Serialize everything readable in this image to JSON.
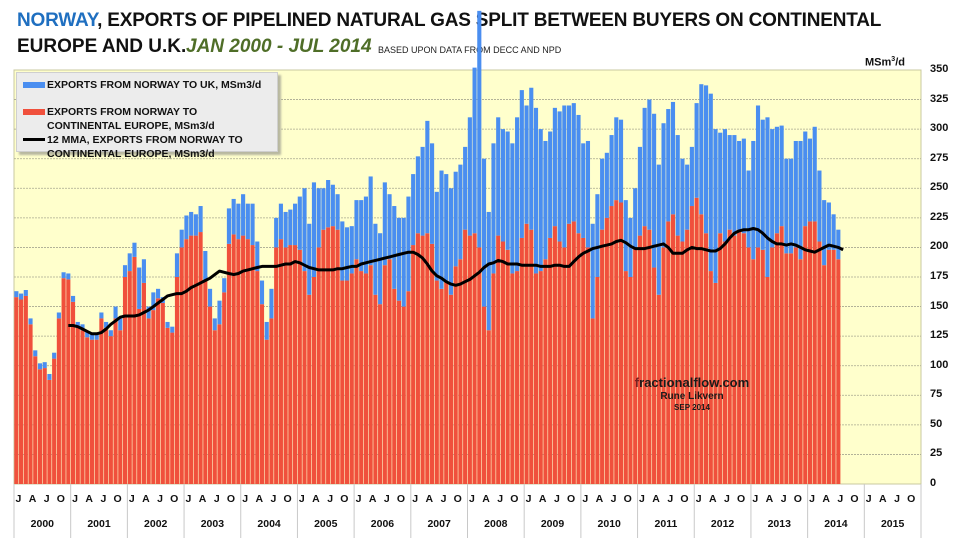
{
  "title": {
    "highlight": "NORWAY",
    "line1_rest": ", EXPORTS OF PIPELINED NATURAL GAS SPLIT BETWEEN BUYERS ON CONTINENTAL",
    "line2": "EUROPE AND U.K.",
    "period": "JAN 2000 - JUL 2014",
    "source": "BASED UPON DATA FROM DECC AND NPD"
  },
  "colors": {
    "uk": "#4a8ef0",
    "continental": "#f0503c",
    "mma": "#000000",
    "plot_bg": "#ffffcc",
    "title_highlight": "#1f6fc0",
    "period": "#4f6e28"
  },
  "watermark": {
    "site_first": "f",
    "site_rest": "ractionalflow.com",
    "author": "Rune Likvern",
    "date": "SEP 2014"
  },
  "chart_data": {
    "type": "bar",
    "stacked": true,
    "title": "NORWAY, EXPORTS OF PIPELINED NATURAL GAS SPLIT BETWEEN BUYERS ON CONTINENTAL EUROPE AND U.K. JAN 2000 - JUL 2014",
    "ylabel": "MSm³/d",
    "y_axis_position": "right",
    "ylim": [
      0,
      350
    ],
    "yticks": [
      0,
      25,
      50,
      75,
      100,
      125,
      150,
      175,
      200,
      225,
      250,
      275,
      300,
      325,
      350
    ],
    "grid": true,
    "legend_position": "top-left",
    "x_start": "2000-01",
    "x_end_axis": "2015-12",
    "month_tick_labels": [
      "J",
      "A",
      "J",
      "O"
    ],
    "year_labels": [
      "2000",
      "2001",
      "2002",
      "2003",
      "2004",
      "2005",
      "2006",
      "2007",
      "2008",
      "2009",
      "2010",
      "2011",
      "2012",
      "2013",
      "2014",
      "2015"
    ],
    "legend": [
      "EXPORTS FROM NORWAY TO UK,  MSm3/d",
      "EXPORTS FROM NORWAY TO CONTINENTAL EUROPE,  MSm3/d",
      "12 MMA, EXPORTS FROM NORWAY TO CONTINENTAL EUROPE, MSm3/d"
    ],
    "series": [
      {
        "name": "EXPORTS FROM NORWAY TO CONTINENTAL EUROPE, MSm3/d",
        "type": "bar",
        "values": [
          158,
          156,
          159,
          135,
          108,
          97,
          98,
          88,
          106,
          140,
          174,
          173,
          154,
          132,
          130,
          124,
          122,
          122,
          140,
          132,
          125,
          140,
          130,
          175,
          180,
          192,
          148,
          170,
          140,
          147,
          157,
          153,
          132,
          128,
          175,
          200,
          207,
          210,
          210,
          213,
          172,
          150,
          130,
          135,
          162,
          203,
          211,
          207,
          210,
          207,
          202,
          180,
          152,
          122,
          140,
          200,
          207,
          200,
          202,
          202,
          198,
          180,
          160,
          175,
          200,
          215,
          217,
          218,
          215,
          172,
          172,
          178,
          190,
          180,
          178,
          185,
          160,
          152,
          185,
          190,
          165,
          155,
          150,
          163,
          202,
          212,
          210,
          212,
          203,
          172,
          165,
          172,
          160,
          184,
          190,
          215,
          210,
          212,
          200,
          150,
          130,
          178,
          210,
          205,
          198,
          178,
          180,
          208,
          220,
          215,
          178,
          180,
          190,
          208,
          218,
          205,
          200,
          220,
          222,
          212,
          208,
          200,
          140,
          175,
          215,
          225,
          235,
          240,
          238,
          180,
          175,
          200,
          210,
          218,
          215,
          183,
          160,
          200,
          222,
          228,
          210,
          205,
          215,
          235,
          242,
          228,
          212,
          180,
          170,
          212,
          205,
          215,
          210,
          215,
          212,
          200,
          190,
          200,
          198,
          175,
          200,
          212,
          218,
          195,
          195,
          200,
          190,
          218,
          222,
          222,
          205,
          185,
          198,
          198,
          190
        ]
      },
      {
        "name": "EXPORTS FROM NORWAY TO UK, MSm3/d",
        "type": "bar",
        "values": [
          5,
          5,
          5,
          5,
          5,
          5,
          5,
          5,
          5,
          5,
          5,
          5,
          5,
          5,
          5,
          5,
          5,
          5,
          5,
          5,
          5,
          10,
          10,
          10,
          15,
          12,
          35,
          20,
          10,
          15,
          8,
          5,
          5,
          5,
          20,
          15,
          20,
          20,
          18,
          22,
          25,
          15,
          10,
          20,
          12,
          30,
          30,
          30,
          35,
          30,
          35,
          25,
          20,
          15,
          25,
          25,
          30,
          30,
          30,
          35,
          45,
          70,
          60,
          80,
          50,
          35,
          40,
          35,
          30,
          50,
          45,
          40,
          50,
          60,
          65,
          75,
          60,
          60,
          70,
          55,
          70,
          70,
          75,
          80,
          60,
          65,
          75,
          95,
          85,
          75,
          100,
          90,
          90,
          80,
          80,
          70,
          100,
          140,
          200,
          125,
          100,
          110,
          100,
          95,
          100,
          110,
          130,
          125,
          100,
          120,
          140,
          120,
          100,
          90,
          100,
          110,
          120,
          100,
          100,
          100,
          80,
          90,
          80,
          70,
          60,
          55,
          60,
          70,
          70,
          60,
          50,
          50,
          75,
          100,
          110,
          130,
          110,
          105,
          95,
          95,
          85,
          70,
          55,
          50,
          80,
          110,
          125,
          150,
          130,
          85,
          95,
          80,
          85,
          75,
          80,
          65,
          100,
          120,
          110,
          135,
          100,
          90,
          85,
          80,
          80,
          90,
          100,
          80,
          70,
          80,
          60,
          55,
          40,
          30,
          25
        ]
      },
      {
        "name": "12 MMA, EXPORTS FROM NORWAY TO CONTINENTAL EUROPE, MSm3/d",
        "type": "line",
        "start": "2000-12",
        "values": [
          134,
          134,
          133,
          131,
          129,
          127,
          127,
          128,
          131,
          135,
          138,
          141,
          142,
          142,
          142,
          143,
          145,
          147,
          150,
          153,
          156,
          159,
          160,
          161,
          161,
          163,
          166,
          168,
          170,
          172,
          174,
          177,
          180,
          179,
          178,
          177,
          178,
          180,
          181,
          182,
          183,
          184,
          184,
          184,
          184,
          185,
          186,
          186,
          188,
          187,
          185,
          183,
          182,
          181,
          181,
          181,
          181,
          182,
          182,
          183,
          184,
          184,
          186,
          187,
          188,
          189,
          190,
          191,
          192,
          193,
          194,
          195,
          196,
          196,
          194,
          191,
          186,
          180,
          176,
          174,
          171,
          169,
          168,
          169,
          171,
          173,
          176,
          179,
          183,
          186,
          187,
          189,
          188,
          186,
          186,
          186,
          185,
          185,
          185,
          185,
          184,
          184,
          184,
          185,
          185,
          184,
          184,
          188,
          192,
          195,
          197,
          199,
          200,
          201,
          202,
          203,
          205,
          206,
          204,
          201,
          199,
          199,
          199,
          200,
          201,
          202,
          203,
          200,
          195,
          195,
          195,
          198,
          200,
          199,
          199,
          198,
          197,
          197,
          199,
          203,
          208,
          212,
          214,
          215,
          215,
          216,
          215,
          212,
          208,
          205,
          203,
          203,
          202,
          203,
          202,
          200,
          198,
          197,
          196,
          198,
          200,
          202,
          201,
          200,
          198
        ]
      }
    ]
  }
}
